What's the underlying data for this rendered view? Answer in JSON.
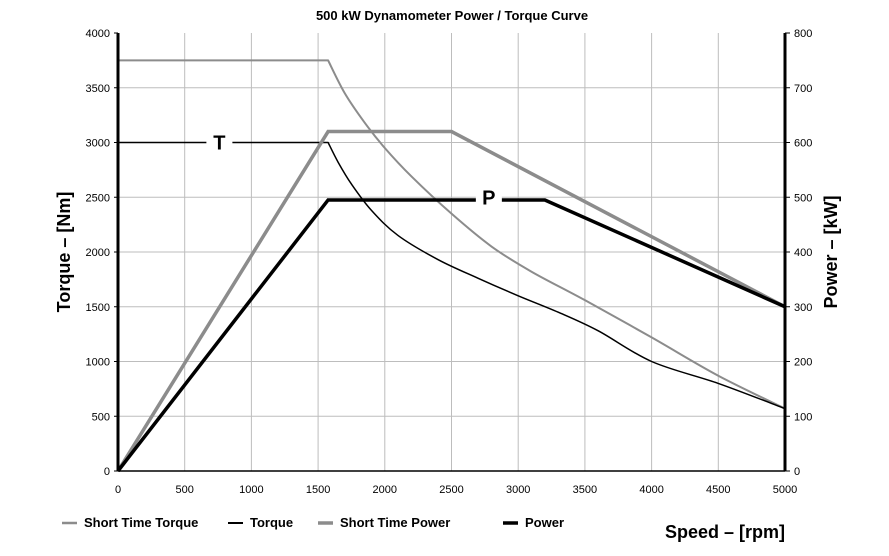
{
  "chart_data": {
    "type": "line",
    "title": "500 kW Dynamometer Power / Torque Curve",
    "xlabel": "Speed  –  [rpm]",
    "ylabel": "Torque  –  [Nm]",
    "y2label": "Power  –  [kW]",
    "xlim": [
      0,
      5000
    ],
    "ylim": [
      0,
      4000
    ],
    "y2lim": [
      0,
      800
    ],
    "xticks": [
      0,
      500,
      1000,
      1500,
      2000,
      2500,
      3000,
      3500,
      4000,
      4500,
      5000
    ],
    "yticks": [
      0,
      500,
      1000,
      1500,
      2000,
      2500,
      3000,
      3500,
      4000
    ],
    "y2ticks": [
      0,
      100,
      200,
      300,
      400,
      500,
      600,
      700,
      800
    ],
    "grid": true,
    "series": [
      {
        "name": "Short Time Torque",
        "axis": "left",
        "color": "#8c8c8c",
        "x": [
          0,
          1575,
          1700,
          1850,
          2000,
          2200,
          2500,
          2800,
          3100,
          3500,
          4000,
          4500,
          5000
        ],
        "y": [
          3750,
          3750,
          3450,
          3180,
          2950,
          2690,
          2350,
          2050,
          1820,
          1560,
          1220,
          870,
          570
        ]
      },
      {
        "name": "Torque",
        "axis": "left",
        "color": "#000000",
        "x": [
          0,
          1575,
          1650,
          1750,
          1900,
          2100,
          2400,
          2700,
          3000,
          3300,
          3600,
          4000,
          4500,
          5000
        ],
        "y": [
          3000,
          3000,
          2820,
          2620,
          2380,
          2150,
          1930,
          1760,
          1600,
          1450,
          1280,
          1000,
          800,
          570
        ]
      },
      {
        "name": "Short Time Power",
        "axis": "right",
        "color": "#8c8c8c",
        "x": [
          0,
          1575,
          2500,
          5000
        ],
        "y": [
          0,
          620,
          620,
          300
        ]
      },
      {
        "name": "Power",
        "axis": "right",
        "color": "#000000",
        "x": [
          0,
          1575,
          3200,
          5000
        ],
        "y": [
          0,
          495,
          495,
          300
        ]
      }
    ],
    "annotations": [
      {
        "text": "T",
        "x": 760,
        "y": 3000,
        "axis": "left"
      },
      {
        "text": "P",
        "x": 2780,
        "y": 500,
        "axis": "right"
      }
    ],
    "legend": [
      "Short Time Torque",
      "Torque",
      "Short Time Power",
      "Power"
    ],
    "legend_position": "bottom-left"
  }
}
